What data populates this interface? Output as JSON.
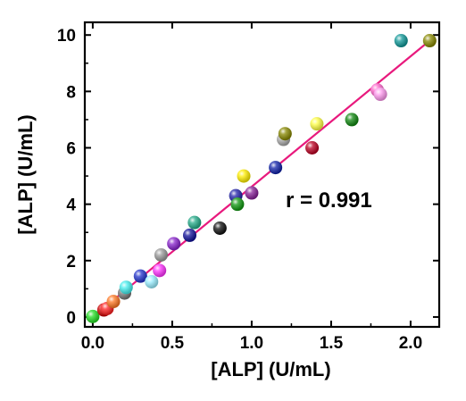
{
  "chart_data": {
    "type": "scatter",
    "title": "",
    "xlabel": "[ALP] (U/mL)",
    "ylabel": "[ALP] (U/mL)",
    "xlim": [
      -0.05,
      2.18
    ],
    "ylim": [
      -0.35,
      10.45
    ],
    "xticks": [
      0.0,
      0.5,
      1.0,
      1.5,
      2.0
    ],
    "xtick_labels": [
      "0.0",
      "0.5",
      "1.0",
      "1.5",
      "2.0"
    ],
    "yticks": [
      0,
      2,
      4,
      6,
      8,
      10
    ],
    "ytick_labels": [
      "0",
      "2",
      "4",
      "6",
      "8",
      "10"
    ],
    "annotation": "r = 0.991",
    "grid": false,
    "fit_line": {
      "x": [
        0.0,
        2.12
      ],
      "y": [
        0.0,
        9.8
      ],
      "color": "#e8197d"
    },
    "points": [
      {
        "x": 0.0,
        "y": 0.02,
        "color": "#22dd22"
      },
      {
        "x": 0.07,
        "y": 0.25,
        "color": "#cc0000"
      },
      {
        "x": 0.09,
        "y": 0.3,
        "color": "#ff2222"
      },
      {
        "x": 0.13,
        "y": 0.55,
        "color": "#ff7722"
      },
      {
        "x": 0.2,
        "y": 0.85,
        "color": "#777777"
      },
      {
        "x": 0.21,
        "y": 1.05,
        "color": "#44eeee"
      },
      {
        "x": 0.3,
        "y": 1.45,
        "color": "#2233cc"
      },
      {
        "x": 0.37,
        "y": 1.25,
        "color": "#99eeff"
      },
      {
        "x": 0.42,
        "y": 1.65,
        "color": "#ff33ff"
      },
      {
        "x": 0.43,
        "y": 2.2,
        "color": "#999999"
      },
      {
        "x": 0.51,
        "y": 2.6,
        "color": "#8822cc"
      },
      {
        "x": 0.61,
        "y": 2.9,
        "color": "#111199"
      },
      {
        "x": 0.64,
        "y": 3.35,
        "color": "#22aa88"
      },
      {
        "x": 0.8,
        "y": 3.15,
        "color": "#111111"
      },
      {
        "x": 0.9,
        "y": 4.3,
        "color": "#2222aa"
      },
      {
        "x": 0.91,
        "y": 4.0,
        "color": "#119911"
      },
      {
        "x": 0.95,
        "y": 5.0,
        "color": "#ffee00"
      },
      {
        "x": 1.0,
        "y": 4.4,
        "color": "#882299"
      },
      {
        "x": 1.15,
        "y": 5.3,
        "color": "#1122aa"
      },
      {
        "x": 1.2,
        "y": 6.3,
        "color": "#aaaaaa"
      },
      {
        "x": 1.21,
        "y": 6.5,
        "color": "#888800"
      },
      {
        "x": 1.38,
        "y": 6.0,
        "color": "#bb0022"
      },
      {
        "x": 1.41,
        "y": 6.85,
        "color": "#ffff44"
      },
      {
        "x": 1.63,
        "y": 7.0,
        "color": "#118811"
      },
      {
        "x": 1.79,
        "y": 8.05,
        "color": "#ff66cc"
      },
      {
        "x": 1.81,
        "y": 7.9,
        "color": "#ff99ee"
      },
      {
        "x": 1.94,
        "y": 9.8,
        "color": "#119999"
      },
      {
        "x": 2.12,
        "y": 9.8,
        "color": "#888800"
      }
    ]
  }
}
